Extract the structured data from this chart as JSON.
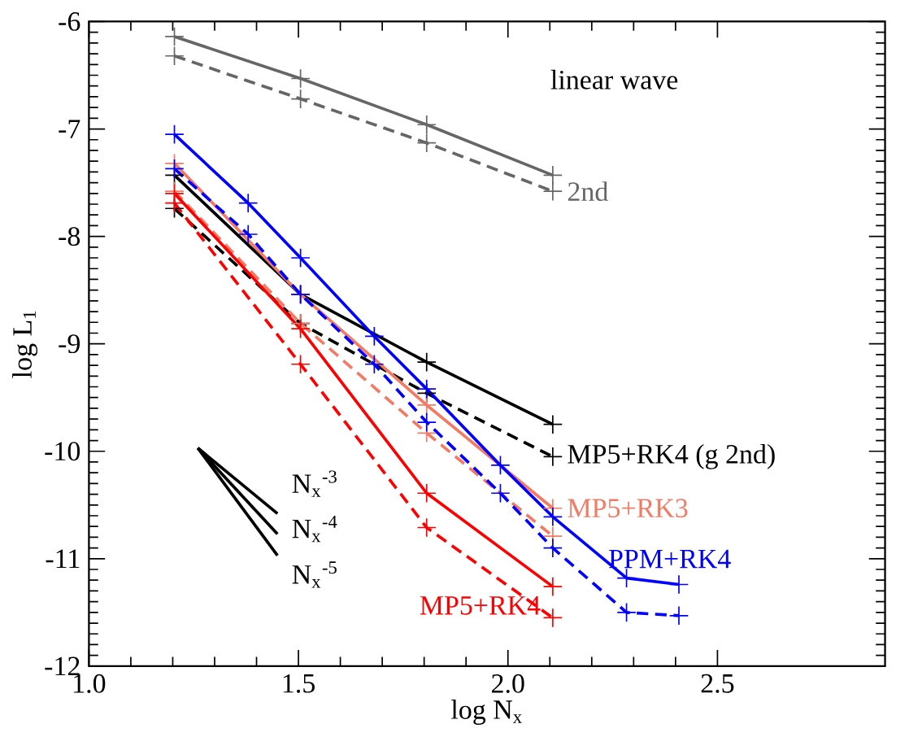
{
  "chart_data": {
    "type": "line",
    "xlabel": "log N$_{x}$",
    "ylabel": "log L$_{1}$",
    "xlim": [
      1.0,
      2.9
    ],
    "ylim": [
      -12,
      -6
    ],
    "xticks": [
      {
        "value": 1.0,
        "label": "1.0"
      },
      {
        "value": 1.5,
        "label": "1.5"
      },
      {
        "value": 2.0,
        "label": "2.0"
      },
      {
        "value": 2.5,
        "label": "2.5"
      }
    ],
    "yticks": [
      -12,
      -11,
      -10,
      -9,
      -8,
      -7,
      -6
    ],
    "marker": "cross",
    "annotations": [
      "linear wave",
      "N$_{x}$$^{-3}$",
      "N$_{x}$$^{-4}$",
      "N$_{x}$$^{-5}$"
    ],
    "series": [
      {
        "color": "#666666",
        "line_style": "solid",
        "x": [
          1.204,
          1.505,
          1.806,
          2.107
        ],
        "values": [
          -6.14,
          -6.53,
          -6.96,
          -7.43
        ]
      },
      {
        "name": "2nd",
        "color": "#666666",
        "line_style": "dashed",
        "x": [
          1.204,
          1.505,
          1.806,
          2.107
        ],
        "values": [
          -6.32,
          -6.72,
          -7.13,
          -7.58
        ]
      },
      {
        "color": "#000000",
        "line_style": "solid",
        "x": [
          1.204,
          1.505,
          1.806,
          2.107
        ],
        "values": [
          -7.43,
          -8.54,
          -9.17,
          -9.75
        ]
      },
      {
        "name": "MP5+RK4 (g 2nd)",
        "color": "#000000",
        "line_style": "dashed",
        "x": [
          1.204,
          1.505,
          1.806,
          2.107
        ],
        "values": [
          -7.74,
          -8.81,
          -9.46,
          -10.05
        ]
      },
      {
        "name": "MP5+RK3",
        "color": "#f47a64",
        "line_style": "solid",
        "x": [
          1.204,
          1.505,
          1.806,
          2.107
        ],
        "values": [
          -7.32,
          -8.54,
          -9.57,
          -10.53
        ]
      },
      {
        "color": "#f47a64",
        "line_style": "dashed",
        "x": [
          1.204,
          1.505,
          1.806,
          2.107
        ],
        "values": [
          -7.58,
          -8.81,
          -9.83,
          -10.79
        ]
      },
      {
        "name": "MP5+RK4",
        "color": "#ff0000",
        "line_style": "solid",
        "x": [
          1.204,
          1.505,
          1.806,
          2.107
        ],
        "values": [
          -7.6,
          -8.86,
          -10.39,
          -11.26
        ]
      },
      {
        "color": "#ff0000",
        "line_style": "dashed",
        "x": [
          1.204,
          1.505,
          1.806,
          2.107
        ],
        "values": [
          -7.69,
          -9.19,
          -10.71,
          -11.55
        ]
      },
      {
        "name": "PPM+RK4",
        "color": "#0000ff",
        "line_style": "solid",
        "x": [
          1.204,
          1.38,
          1.505,
          1.681,
          1.806,
          1.982,
          2.107,
          2.283,
          2.408
        ],
        "values": [
          -7.05,
          -7.69,
          -8.2,
          -8.93,
          -9.42,
          -10.13,
          -10.61,
          -11.18,
          -11.24
        ]
      },
      {
        "color": "#0000ff",
        "line_style": "dashed",
        "x": [
          1.204,
          1.38,
          1.505,
          1.681,
          1.806,
          1.982,
          2.107,
          2.283,
          2.408
        ],
        "values": [
          -7.37,
          -7.98,
          -8.54,
          -9.19,
          -9.73,
          -10.39,
          -10.9,
          -11.5,
          -11.53
        ]
      },
      {
        "color": "#000000",
        "line_style": "solid",
        "marker": "none",
        "x": [
          1.26,
          1.45
        ],
        "values": [
          -9.97,
          -10.58
        ]
      },
      {
        "color": "#000000",
        "line_style": "solid",
        "marker": "none",
        "x": [
          1.26,
          1.45
        ],
        "values": [
          -9.97,
          -10.77
        ]
      },
      {
        "color": "#000000",
        "line_style": "solid",
        "marker": "none",
        "x": [
          1.26,
          1.45
        ],
        "values": [
          -9.97,
          -10.97
        ]
      }
    ]
  }
}
